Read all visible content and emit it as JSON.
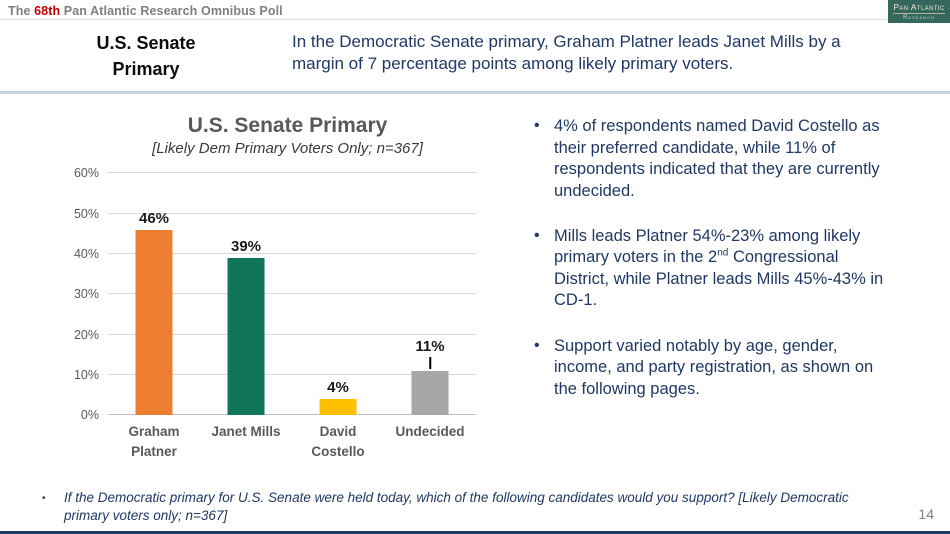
{
  "header": {
    "prefix": "The ",
    "edition": "68th",
    "rest": " Pan Atlantic Research Omnibus Poll"
  },
  "logo": {
    "line1": "Pan Atlantic",
    "line2": "Research"
  },
  "slide": {
    "title": "U.S. Senate Primary",
    "headline": "In the Democratic Senate primary, Graham Platner leads Janet Mills by a margin of 7 percentage points among likely primary voters."
  },
  "bullets": [
    {
      "text": "4% of respondents named David Costello as their preferred candidate, while 11% of respondents indicated that they are currently undecided."
    },
    {
      "pre": "Mills leads Platner 54%-23% among likely primary voters in the 2",
      "sup": "nd",
      "post": " Congressional District, while Platner leads Mills 45%-43% in CD-1."
    },
    {
      "text": "Support varied notably by age, gender, income, and party registration, as shown on the following pages."
    }
  ],
  "footnote": "If the Democratic primary for U.S. Senate were held today, which of the following candidates would you support? [Likely Democratic primary voters only; n=367]",
  "page_number": "14",
  "chart_data": {
    "type": "bar",
    "title": "U.S. Senate Primary",
    "subtitle": "[Likely Dem Primary Voters Only; n=367]",
    "categories": [
      "Graham Platner",
      "Janet Mills",
      "David Costello",
      "Undecided"
    ],
    "values": [
      46,
      39,
      4,
      11
    ],
    "data_labels": [
      "46%",
      "39%",
      "4%",
      "11%"
    ],
    "bar_colors": [
      "#ED7D31",
      "#11755A",
      "#FFC000",
      "#A6A6A6"
    ],
    "leader_line": [
      false,
      false,
      false,
      true
    ],
    "xlabel": "",
    "ylabel": "",
    "ylim": [
      0,
      60
    ],
    "ytick_step": 10,
    "ytick_labels": [
      "0%",
      "10%",
      "20%",
      "30%",
      "40%",
      "50%",
      "60%"
    ],
    "grid": true,
    "legend": false
  },
  "colors": {
    "accent_navy": "#1F3864",
    "edition_red": "#C00000",
    "header_gray": "#7F7F7F",
    "chart_gray": "#595959",
    "divider_blue": "#C7D0E0",
    "logo_green": "#35685C"
  }
}
